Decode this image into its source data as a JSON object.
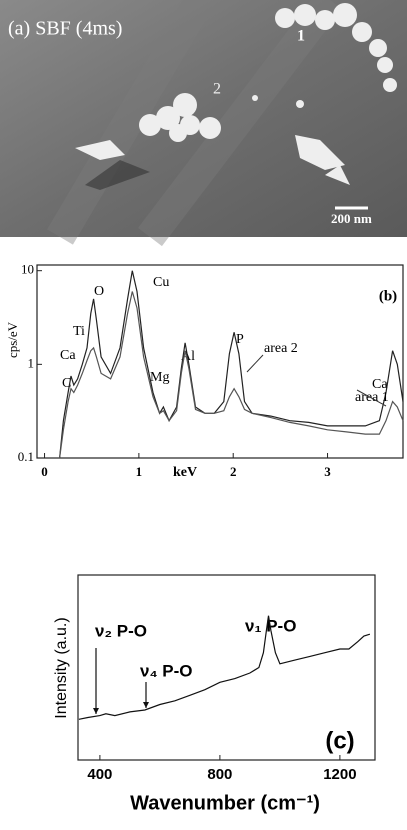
{
  "image_a": {
    "panel_label": "(a) SBF (4ms)",
    "area_labels": [
      "1",
      "2"
    ],
    "scale_bar": "200 nm"
  },
  "chart_data": [
    {
      "type": "line",
      "panel_label": "(b)",
      "x_label": "keV",
      "y_label": "cps/eV",
      "log_y": true,
      "xlim": [
        -0.08,
        3.8
      ],
      "ylim": [
        0.1,
        11.5
      ],
      "xticks": [
        0,
        1,
        2,
        3
      ],
      "yticks": [
        0.1,
        1,
        10
      ],
      "annotations": [
        "C",
        "Ca",
        "Ti",
        "O",
        "Cu",
        "Mg",
        "Al",
        "P",
        "Ca"
      ],
      "x": [
        0.16,
        0.2,
        0.25,
        0.28,
        0.31,
        0.35,
        0.4,
        0.45,
        0.49,
        0.52,
        0.55,
        0.6,
        0.7,
        0.8,
        0.88,
        0.93,
        0.98,
        1.05,
        1.15,
        1.22,
        1.26,
        1.32,
        1.4,
        1.45,
        1.49,
        1.53,
        1.6,
        1.7,
        1.8,
        1.9,
        1.96,
        2.01,
        2.06,
        2.12,
        2.2,
        2.4,
        2.6,
        2.8,
        3.0,
        3.2,
        3.4,
        3.55,
        3.62,
        3.69,
        3.74,
        3.8
      ],
      "series": [
        {
          "name": "area 1",
          "color": "#222222",
          "values": [
            0.1,
            0.25,
            0.5,
            0.75,
            0.6,
            0.7,
            1.0,
            1.5,
            3.5,
            5,
            3,
            1.2,
            0.8,
            1.5,
            5,
            10,
            6,
            1.5,
            0.5,
            0.3,
            0.35,
            0.25,
            0.35,
            0.9,
            1.7,
            1.0,
            0.35,
            0.3,
            0.3,
            0.4,
            1.3,
            2.2,
            1.3,
            0.4,
            0.3,
            0.28,
            0.25,
            0.24,
            0.22,
            0.22,
            0.22,
            0.25,
            0.5,
            1.4,
            1.0,
            0.4
          ]
        },
        {
          "name": "area 2",
          "color": "#555555",
          "values": [
            0.1,
            0.2,
            0.4,
            0.55,
            0.5,
            0.6,
            0.8,
            1.1,
            1.4,
            1.5,
            1.2,
            0.8,
            0.7,
            1.2,
            3.5,
            6,
            4,
            1.2,
            0.45,
            0.3,
            0.32,
            0.25,
            0.32,
            0.8,
            1.4,
            0.9,
            0.33,
            0.3,
            0.3,
            0.32,
            0.45,
            0.55,
            0.45,
            0.33,
            0.3,
            0.27,
            0.24,
            0.22,
            0.2,
            0.19,
            0.18,
            0.18,
            0.25,
            0.4,
            0.35,
            0.25
          ]
        }
      ]
    },
    {
      "type": "line",
      "panel_label": "(c)",
      "x_label": "Wavenumber (cm⁻¹)",
      "y_label": "Intensity (a.u.)",
      "xlim": [
        327,
        1317
      ],
      "ylim": [
        0,
        100
      ],
      "xticks": [
        400,
        800,
        1200
      ],
      "annotations": [
        "ν₂ P-O",
        "ν₄ P-O",
        "ν₁ P-O"
      ],
      "x": [
        330,
        360,
        400,
        420,
        450,
        500,
        550,
        600,
        650,
        700,
        750,
        800,
        850,
        900,
        930,
        945,
        955,
        962,
        970,
        985,
        1000,
        1050,
        1100,
        1150,
        1200,
        1230,
        1260,
        1280,
        1300
      ],
      "series": [
        {
          "name": null,
          "color": "#111111",
          "values": [
            22,
            23,
            24,
            25,
            24,
            26,
            27,
            30,
            32,
            35,
            38,
            42,
            44,
            47,
            50,
            58,
            70,
            78,
            70,
            58,
            52,
            54,
            56,
            58,
            60,
            60,
            64,
            67,
            68
          ]
        }
      ]
    }
  ]
}
